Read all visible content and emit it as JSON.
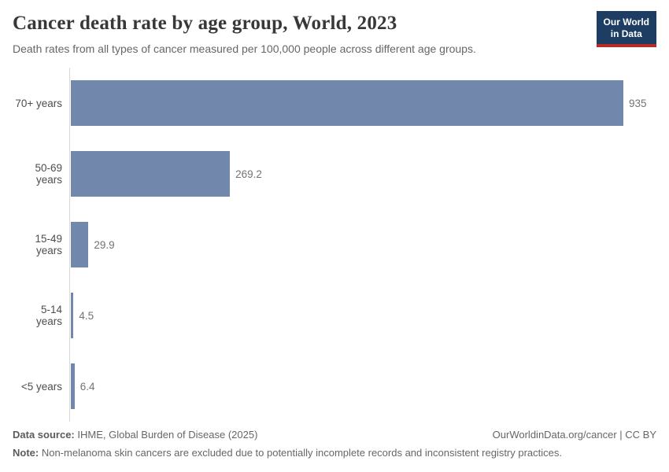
{
  "header": {
    "title": "Cancer death rate by age group, World, 2023",
    "subtitle": "Death rates from all types of cancer measured per 100,000 people across different age groups.",
    "logo": {
      "line1": "Our World",
      "line2": "in Data"
    }
  },
  "chart_data": {
    "type": "bar",
    "orientation": "horizontal",
    "title": "Cancer death rate by age group, World, 2023",
    "categories": [
      "70+ years",
      "50-69 years",
      "15-49 years",
      "5-14 years",
      "<5 years"
    ],
    "values": [
      935,
      269.2,
      29.9,
      4.5,
      6.4
    ],
    "value_labels": [
      "935",
      "269.2",
      "29.9",
      "4.5",
      "6.4"
    ],
    "xlabel": "",
    "ylabel": "",
    "xlim": [
      0,
      935
    ],
    "grid": false,
    "legend": "none",
    "bar_color": "#7287ac"
  },
  "footer": {
    "data_source_label": "Data source:",
    "data_source_text": " IHME, Global Burden of Disease (2025)",
    "attribution": "OurWorldinData.org/cancer | CC BY",
    "note_label": "Note:",
    "note_text": " Non-melanoma skin cancers are excluded due to potentially incomplete records and inconsistent registry practices."
  },
  "colors": {
    "bar": "#7287ac",
    "logo_background": "#1d3d63",
    "logo_stripe": "#b52b26",
    "axis_line": "#d9d9d9",
    "title_text": "#383838",
    "subtitle_text": "#666666"
  }
}
